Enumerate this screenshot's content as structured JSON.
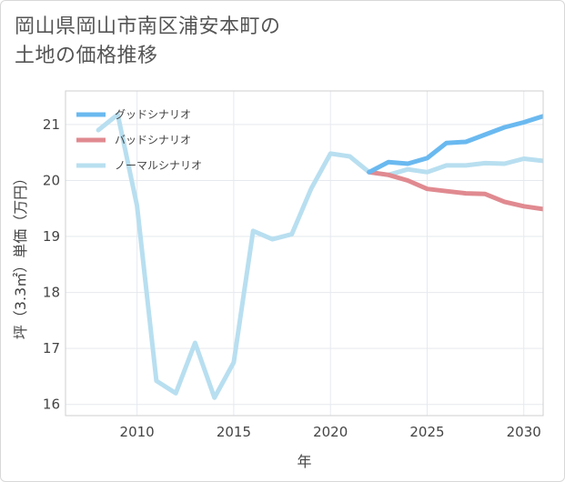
{
  "title_line1": "岡山県岡山市南区浦安本町の",
  "title_line2": "土地の価格推移",
  "chart_data": {
    "type": "line",
    "title": "岡山県岡山市南区浦安本町の土地の価格推移",
    "xlabel": "年",
    "ylabel": "坪（3.3㎡）単価（万円）",
    "xlim": [
      2006.3,
      2031.0
    ],
    "ylim": [
      15.8,
      21.6
    ],
    "xticks": [
      2010,
      2015,
      2020,
      2025,
      2030
    ],
    "yticks": [
      16,
      17,
      18,
      19,
      20,
      21
    ],
    "grid": true,
    "legend_position": "top-left",
    "series": [
      {
        "name": "グッドシナリオ",
        "color": "#6ab9f0",
        "x": [
          2022,
          2023,
          2024,
          2025,
          2026,
          2027,
          2028,
          2029,
          2030,
          2031
        ],
        "y": [
          20.15,
          20.33,
          20.3,
          20.4,
          20.67,
          20.69,
          20.82,
          20.95,
          21.04,
          21.15
        ]
      },
      {
        "name": "バッドシナリオ",
        "color": "#e08a90",
        "x": [
          2022,
          2023,
          2024,
          2025,
          2026,
          2027,
          2028,
          2029,
          2030,
          2031
        ],
        "y": [
          20.15,
          20.1,
          20.0,
          19.85,
          19.81,
          19.77,
          19.76,
          19.62,
          19.54,
          19.49
        ]
      },
      {
        "name": "ノーマルシナリオ",
        "color": "#b8dff0",
        "x": [
          2008,
          2009,
          2010,
          2011,
          2012,
          2013,
          2014,
          2015,
          2016,
          2017,
          2018,
          2019,
          2020,
          2021,
          2022,
          2023,
          2024,
          2025,
          2026,
          2027,
          2028,
          2029,
          2030,
          2031
        ],
        "y": [
          20.9,
          21.18,
          19.55,
          16.42,
          16.2,
          17.1,
          16.12,
          16.75,
          19.1,
          18.95,
          19.04,
          19.85,
          20.48,
          20.43,
          20.15,
          20.1,
          20.2,
          20.15,
          20.27,
          20.27,
          20.31,
          20.3,
          20.39,
          20.35
        ]
      }
    ]
  }
}
